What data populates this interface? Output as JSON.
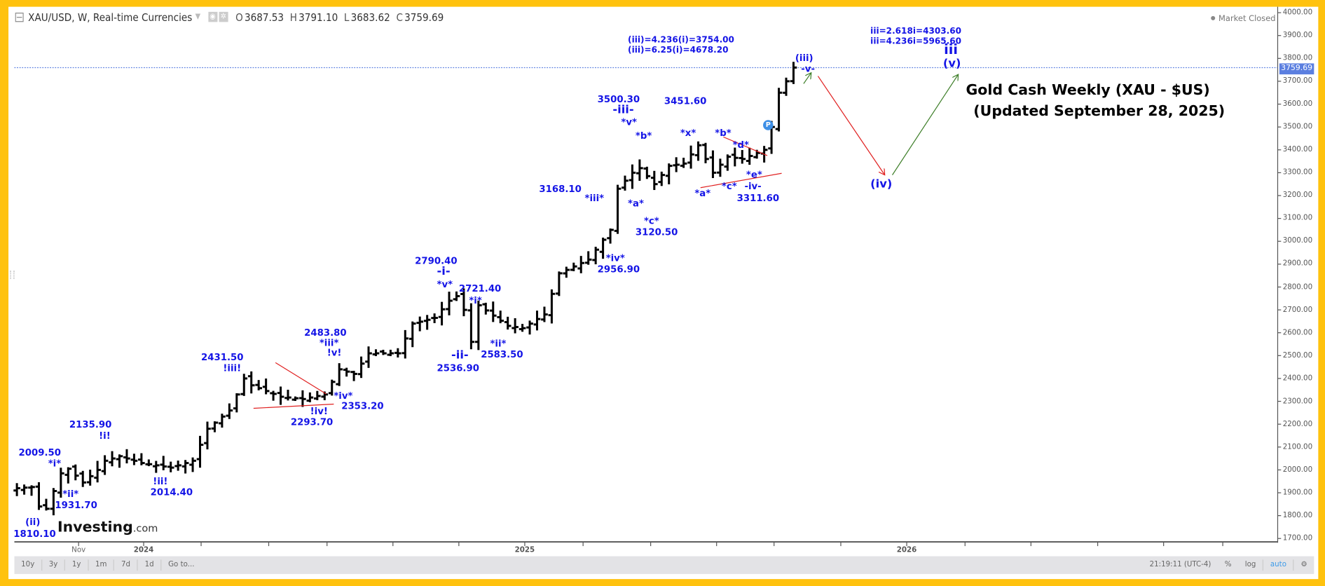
{
  "header": {
    "symbol_title": "XAU/USD, W, Real-time Currencies",
    "open_key": "O",
    "open": "3687.53",
    "high_key": "H",
    "high": "3791.10",
    "low_key": "L",
    "low": "3683.62",
    "close_key": "C",
    "close": "3759.69",
    "market_status": "Market Closed"
  },
  "title": {
    "line1": "Gold Cash Weekly (XAU - $US)",
    "line2": "(Updated September 28, 2025)"
  },
  "annotations": [
    "(iii)=4.236(i)=3754.00",
    "(iii)=6.25(i)=4678.20",
    "iii=2.618i=4303.60",
    "iii=4.236i=5965.60",
    "iii",
    "(v)",
    "(iii)",
    "-v-",
    "(iv)",
    "3500.30",
    "-iii-",
    "*v*",
    "*b*",
    "3451.60",
    "*x*",
    "*b*",
    "*d*",
    "3168.10",
    "*iii*",
    "*a*",
    "*c*",
    "3120.50",
    "*a*",
    "*c*",
    "*e*",
    "-iv-",
    "3311.60",
    "*iv*",
    "2956.90",
    "2790.40",
    "-i-",
    "*v*",
    "2721.40",
    "*i*",
    "-ii-",
    "2536.90",
    "*ii*",
    "2583.50",
    "2483.80",
    "*iii*",
    "!v!",
    "2431.50",
    "!iii!",
    "*iv*",
    "2353.20",
    "!iv!",
    "2293.70",
    "2135.90",
    "!i!",
    "2009.50",
    "*i*",
    "*ii*",
    "1931.70",
    "!ii!",
    "2014.40",
    "(ii)",
    "1810.10"
  ],
  "current_price_label": "3759.69",
  "logo": {
    "main": "Investing",
    "suffix": ".com"
  },
  "time_axis": {
    "labels": [
      "Nov",
      "2024",
      "2025",
      "2026"
    ]
  },
  "toolbar": {
    "ranges": [
      "10y",
      "3y",
      "1y",
      "1m",
      "7d",
      "1d",
      "Go to..."
    ],
    "clock": "21:19:11 (UTC-4)",
    "percent": "%",
    "log": "log",
    "auto": "auto"
  },
  "colors": {
    "border": "#FFC20E",
    "annotation": "#1414e6",
    "bearish_path": "#e02020",
    "bullish_path": "#3f7f2a",
    "price_tag": "#5b7fe0"
  },
  "chart_data": {
    "type": "ohlc",
    "symbol": "XAU/USD",
    "interval": "W",
    "ylim": [
      1700,
      4000
    ],
    "y_ticks": [
      1700,
      1800,
      1900,
      2000,
      2100,
      2200,
      2300,
      2400,
      2500,
      2600,
      2700,
      2800,
      2900,
      3000,
      3100,
      3200,
      3300,
      3400,
      3500,
      3600,
      3700,
      3800,
      3900,
      4000
    ],
    "last_price": 3759.69,
    "weekly_close_waypoints": [
      [
        0,
        1920
      ],
      [
        2,
        1925
      ],
      [
        3,
        1840
      ],
      [
        4,
        1830
      ],
      [
        6,
        1985
      ],
      [
        7,
        2005
      ],
      [
        9,
        1945
      ],
      [
        11,
        2000
      ],
      [
        12,
        2040
      ],
      [
        14,
        2060
      ],
      [
        17,
        2030
      ],
      [
        21,
        2010
      ],
      [
        24,
        2040
      ],
      [
        26,
        2180
      ],
      [
        29,
        2260
      ],
      [
        31,
        2400
      ],
      [
        32,
        2370
      ],
      [
        36,
        2320
      ],
      [
        39,
        2310
      ],
      [
        42,
        2330
      ],
      [
        44,
        2440
      ],
      [
        46,
        2420
      ],
      [
        48,
        2510
      ],
      [
        52,
        2510
      ],
      [
        54,
        2640
      ],
      [
        57,
        2665
      ],
      [
        59,
        2740
      ],
      [
        60,
        2760
      ],
      [
        61,
        2700
      ],
      [
        62,
        2560
      ],
      [
        63,
        2720
      ],
      [
        67,
        2630
      ],
      [
        69,
        2620
      ],
      [
        72,
        2680
      ],
      [
        74,
        2860
      ],
      [
        76,
        2890
      ],
      [
        78,
        2920
      ],
      [
        81,
        3050
      ],
      [
        82,
        3230
      ],
      [
        84,
        3300
      ],
      [
        85,
        3320
      ],
      [
        87,
        3250
      ],
      [
        89,
        3330
      ],
      [
        91,
        3340
      ],
      [
        93,
        3420
      ],
      [
        95,
        3300
      ],
      [
        97,
        3370
      ],
      [
        99,
        3360
      ],
      [
        102,
        3400
      ],
      [
        103,
        3500
      ],
      [
        104,
        3650
      ],
      [
        105,
        3700
      ],
      [
        106,
        3760
      ]
    ]
  }
}
